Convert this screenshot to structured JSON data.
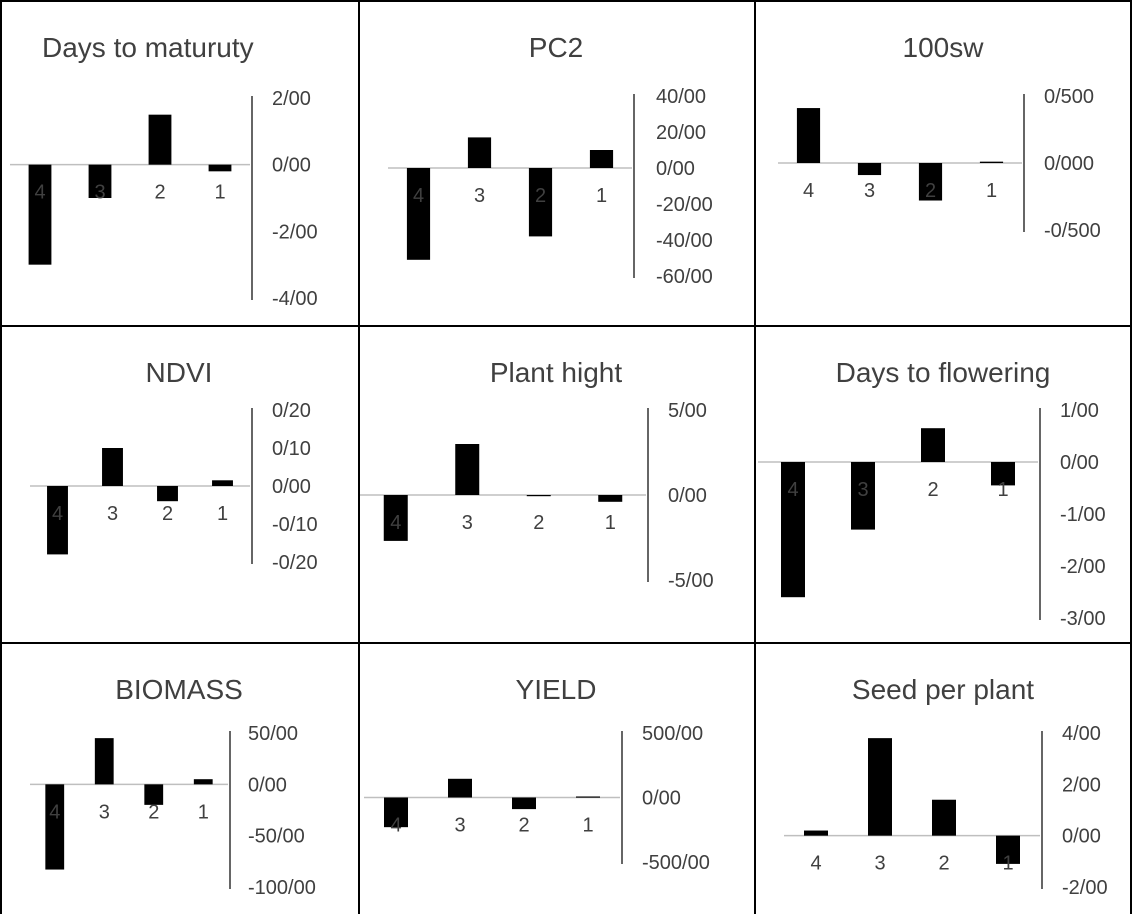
{
  "chart_data": [
    {
      "type": "bar",
      "title": "Days to maturuty",
      "categories": [
        "4",
        "3",
        "2",
        "1"
      ],
      "values": [
        -3.0,
        -1.0,
        1.5,
        -0.2
      ],
      "ylim": [
        -4,
        2
      ],
      "ticks": [
        "2/00",
        "0/00",
        "-2/00",
        "-4/00"
      ],
      "color": "#000000"
    },
    {
      "type": "bar",
      "title": "PC2",
      "categories": [
        "4",
        "3",
        "2",
        "1"
      ],
      "values": [
        -51,
        17,
        -38,
        10
      ],
      "ylim": [
        -60,
        40
      ],
      "ticks": [
        "40/00",
        "20/00",
        "0/00",
        "-20/00",
        "-40/00",
        "-60/00"
      ],
      "color": "#000000"
    },
    {
      "type": "bar",
      "title": "100sw",
      "categories": [
        "4",
        "3",
        "2",
        "1"
      ],
      "values": [
        0.41,
        -0.09,
        -0.28,
        0.01
      ],
      "ylim": [
        -0.5,
        0.5
      ],
      "ticks": [
        "0/500",
        "0/000",
        "-0/500"
      ],
      "color": "#000000"
    },
    {
      "type": "bar",
      "title": "NDVI",
      "categories": [
        "4",
        "3",
        "2",
        "1"
      ],
      "values": [
        -0.18,
        0.1,
        -0.04,
        0.015
      ],
      "ylim": [
        -0.2,
        0.2
      ],
      "ticks": [
        "0/20",
        "0/10",
        "0/00",
        "-0/10",
        "-0/20"
      ],
      "color": "#000000"
    },
    {
      "type": "bar",
      "title": "Plant hight",
      "categories": [
        "4",
        "3",
        "2",
        "1"
      ],
      "values": [
        -2.7,
        3.0,
        0.0,
        -0.4
      ],
      "ylim": [
        -5,
        5
      ],
      "ticks": [
        "5/00",
        "0/00",
        "-5/00"
      ],
      "color": "#000000"
    },
    {
      "type": "bar",
      "title": "Days to flowering",
      "categories": [
        "4",
        "3",
        "2",
        "1"
      ],
      "values": [
        -2.6,
        -1.3,
        0.65,
        -0.45
      ],
      "ylim": [
        -3,
        1
      ],
      "ticks": [
        "1/00",
        "0/00",
        "-1/00",
        "-2/00",
        "-3/00"
      ],
      "color": "#000000"
    },
    {
      "type": "bar",
      "title": "BIOMASS",
      "categories": [
        "4",
        "3",
        "2",
        "1"
      ],
      "values": [
        -83,
        45,
        -20,
        5
      ],
      "ylim": [
        -100,
        50
      ],
      "ticks": [
        "50/00",
        "0/00",
        "-50/00",
        "-100/00"
      ],
      "color": "#000000"
    },
    {
      "type": "bar",
      "title": "YIELD",
      "categories": [
        "4",
        "3",
        "2",
        "1"
      ],
      "values": [
        -230,
        145,
        -90,
        8
      ],
      "ylim": [
        -500,
        500
      ],
      "ticks": [
        "500/00",
        "0/00",
        "-500/00"
      ],
      "color": "#000000"
    },
    {
      "type": "bar",
      "title": "Seed per plant",
      "categories": [
        "4",
        "3",
        "2",
        "1"
      ],
      "values": [
        0.2,
        3.8,
        1.4,
        -1.1
      ],
      "ylim": [
        -2,
        4
      ],
      "ticks": [
        "4/00",
        "2/00",
        "0/00",
        "-2/00"
      ],
      "color": "#000000"
    }
  ]
}
